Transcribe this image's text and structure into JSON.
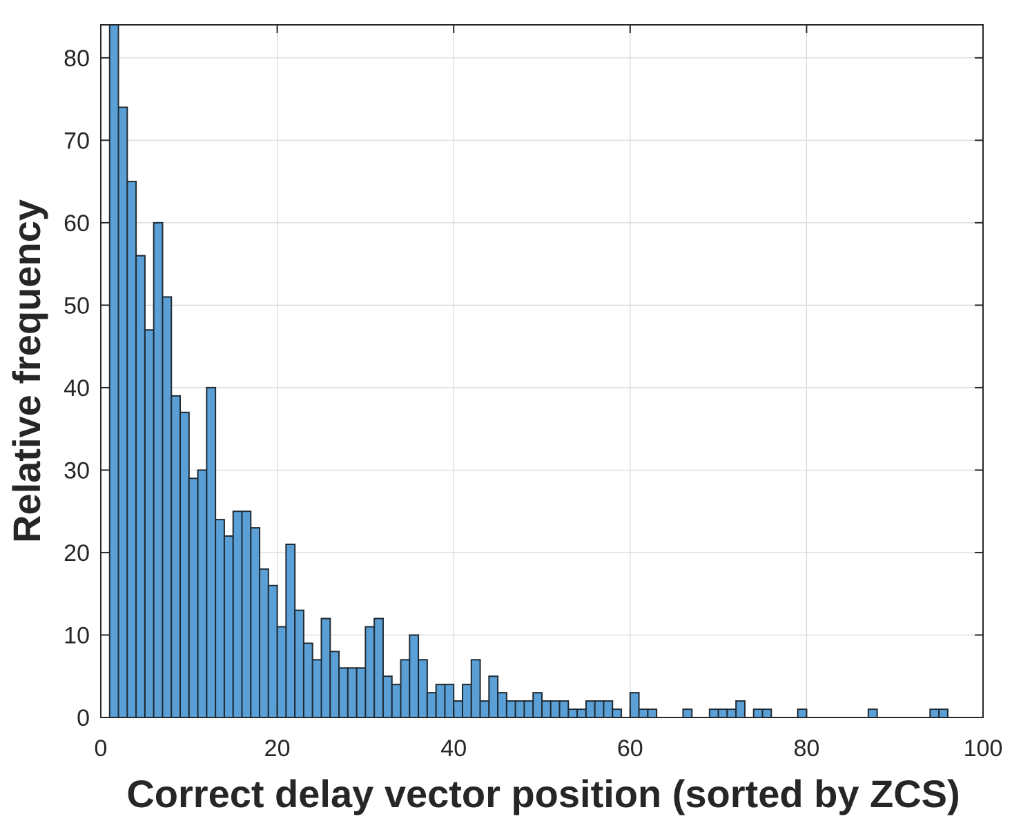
{
  "chart_data": {
    "type": "bar",
    "title": "",
    "xlabel": "Correct delay vector position (sorted by ZCS)",
    "ylabel": "Relative frequency",
    "xlim": [
      0,
      100
    ],
    "ylim": [
      0,
      84
    ],
    "grid": true,
    "bin_width": 1,
    "bin_start": 1,
    "x_ticks": [
      0,
      20,
      40,
      60,
      80,
      100
    ],
    "x_tick_labels": [
      "0",
      "20",
      "40",
      "60",
      "80",
      "100"
    ],
    "y_ticks": [
      0,
      10,
      20,
      30,
      40,
      50,
      60,
      70,
      80
    ],
    "y_tick_labels": [
      "0",
      "10",
      "20",
      "30",
      "40",
      "50",
      "60",
      "70",
      "80"
    ],
    "colors": {
      "bar_fill": "#5aa0d6",
      "bar_edge": "#1f2a33",
      "grid": "#d6d6d6",
      "axis": "#262626"
    },
    "values": [
      84,
      74,
      65,
      56,
      47,
      60,
      51,
      39,
      37,
      29,
      30,
      40,
      24,
      22,
      25,
      25,
      23,
      18,
      16,
      11,
      21,
      13,
      9,
      7,
      12,
      8,
      6,
      6,
      6,
      11,
      12,
      5,
      4,
      7,
      10,
      7,
      3,
      4,
      4,
      2,
      4,
      7,
      2,
      5,
      3,
      2,
      2,
      2,
      3,
      2,
      2,
      2,
      1,
      1,
      2,
      2,
      2,
      1,
      0,
      3,
      1,
      1,
      0,
      0,
      0,
      1,
      0,
      0,
      1,
      1,
      1,
      2,
      0,
      1,
      1,
      0,
      0,
      0,
      1,
      0,
      0,
      0,
      0,
      0,
      0,
      0,
      1,
      0,
      0,
      0,
      0,
      0,
      0,
      1,
      1,
      0,
      0,
      0,
      0
    ]
  }
}
